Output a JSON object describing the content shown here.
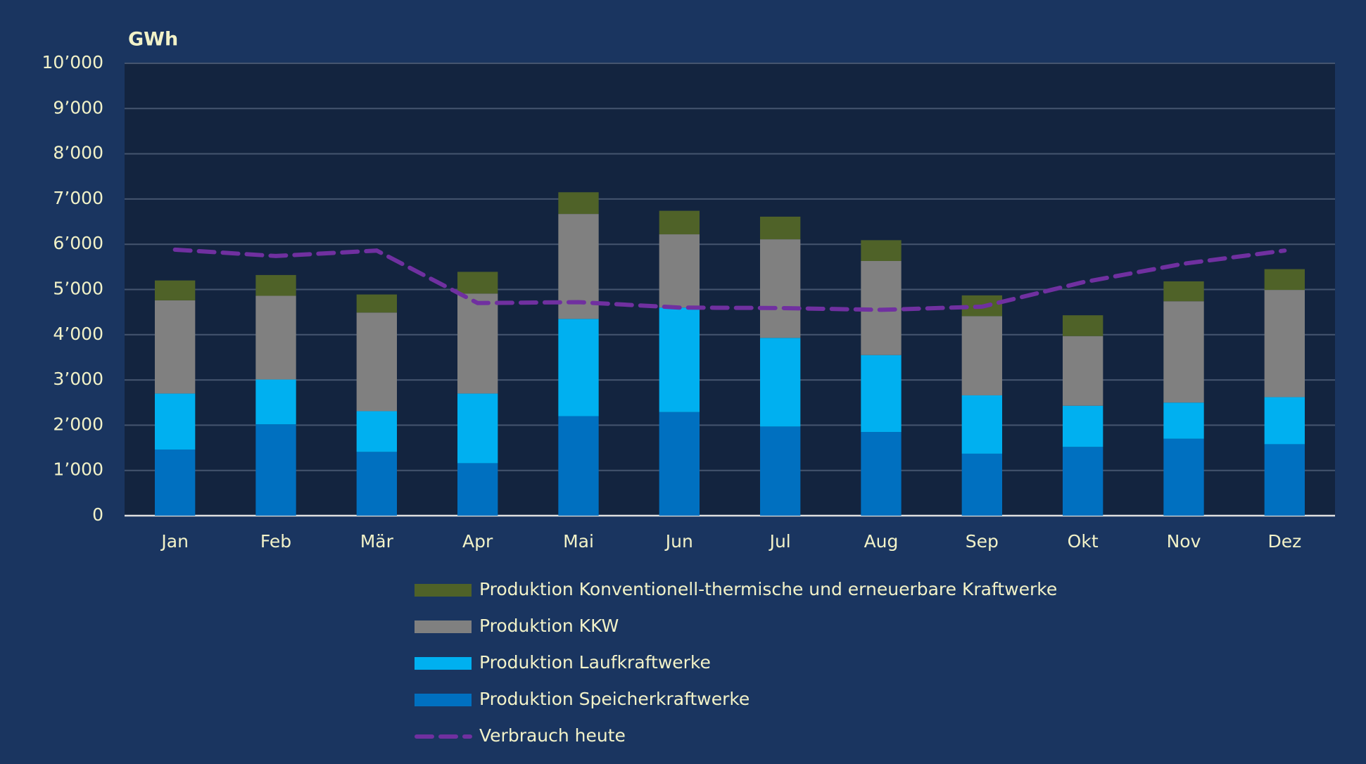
{
  "chart_data": {
    "type": "bar",
    "stacked": true,
    "y_label": "GWh",
    "categories": [
      "Jan",
      "Feb",
      "Mär",
      "Apr",
      "Mai",
      "Jun",
      "Jul",
      "Aug",
      "Sep",
      "Okt",
      "Nov",
      "Dez"
    ],
    "series": [
      {
        "name": "Produktion Speicherkraftwerke",
        "color": "#0070c0",
        "values": [
          1460,
          2020,
          1410,
          1160,
          2200,
          2290,
          1970,
          1850,
          1370,
          1520,
          1700,
          1580
        ]
      },
      {
        "name": "Produktion Laufkraftwerke",
        "color": "#00b0f0",
        "values": [
          1240,
          990,
          900,
          1540,
          2150,
          2310,
          1960,
          1700,
          1290,
          910,
          800,
          1040
        ]
      },
      {
        "name": "Produktion KKW",
        "color": "#808080",
        "values": [
          2060,
          1850,
          2180,
          2210,
          2320,
          1620,
          2180,
          2080,
          1750,
          1540,
          2240,
          2370
        ]
      },
      {
        "name": "Produktion Konventionell-thermische und erneuerbare Kraftwerke",
        "color": "#4f6228",
        "values": [
          440,
          460,
          400,
          480,
          480,
          520,
          500,
          460,
          460,
          460,
          440,
          460
        ]
      },
      {
        "name": "Verbrauch heute",
        "color": "#7030a0",
        "type": "line",
        "dashed": true,
        "values": [
          5880,
          5740,
          5860,
          4700,
          4720,
          4600,
          4590,
          4550,
          4620,
          5160,
          5570,
          5860
        ]
      }
    ],
    "ylim": [
      0,
      10000
    ],
    "yticks": [
      0,
      {
        "value": 1000,
        "label": "1’000"
      },
      {
        "value": 2000,
        "label": "2’000"
      },
      {
        "value": 3000,
        "label": "3’000"
      },
      {
        "value": 4000,
        "label": "4’000"
      },
      {
        "value": 5000,
        "label": "5’000"
      },
      {
        "value": 6000,
        "label": "6’000"
      },
      {
        "value": 7000,
        "label": "7’000"
      },
      {
        "value": 8000,
        "label": "8’000"
      },
      {
        "value": 9000,
        "label": "9’000"
      },
      {
        "value": 10000,
        "label": "10’000"
      }
    ],
    "grid": true,
    "legend": "bottom"
  }
}
